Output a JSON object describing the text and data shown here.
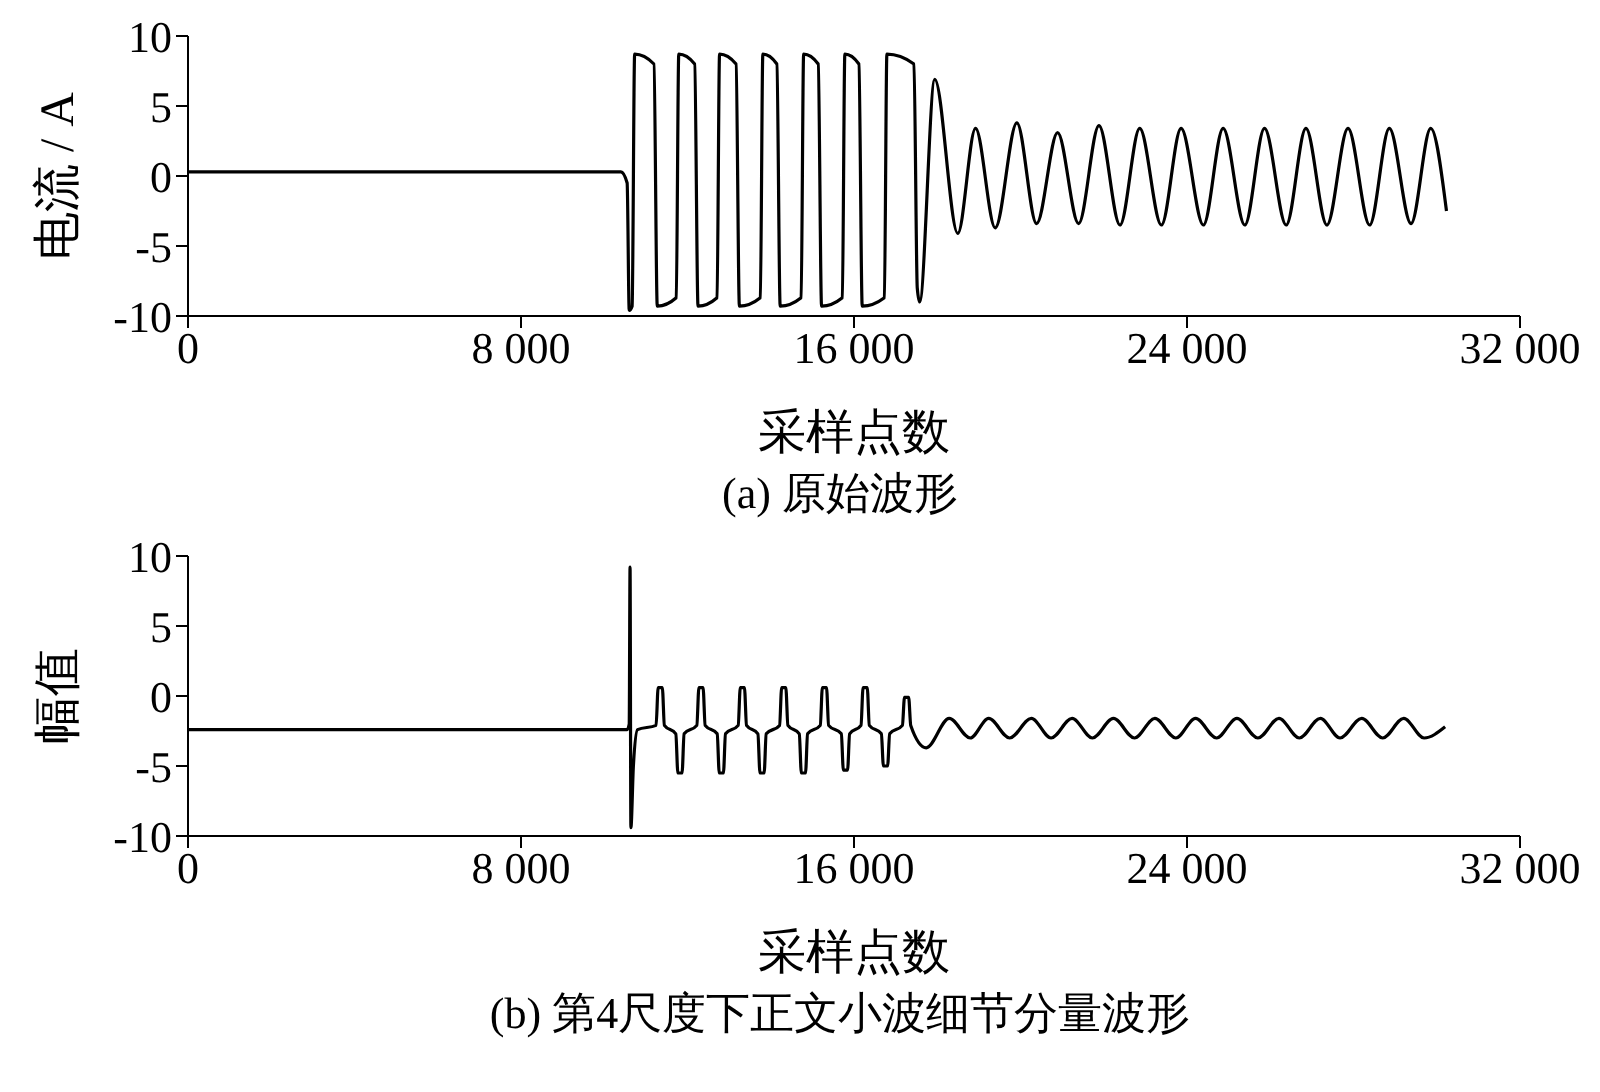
{
  "chart_data": [
    {
      "type": "line",
      "title": "(a)  原始波形",
      "xlabel": "采样点数",
      "ylabel": "电流 / A",
      "xlim": [
        0,
        32000
      ],
      "xticks": [
        0,
        {
          "value": 8000,
          "label": "8 000"
        },
        {
          "value": 16000,
          "label": "16 000"
        },
        {
          "value": 24000,
          "label": "24 000"
        },
        {
          "value": 32000,
          "label": "32 000"
        }
      ],
      "ylim": [
        -10,
        10
      ],
      "yticks": [
        -10,
        -5,
        0,
        5,
        10
      ],
      "grid": false,
      "legend": false,
      "marker": "none",
      "line_style": "solid",
      "series": [
        {
          "color": "#000000",
          "x": [
            0,
            10400,
            10550,
            10600,
            10670,
            10730,
            11194,
            11274,
            11730,
            11790,
            12173,
            12253,
            12710,
            12770,
            13167,
            13247,
            13750,
            13810,
            14147,
            14227,
            14730,
            14790,
            15141,
            15221,
            15720,
            15780,
            16118,
            16198,
            16730,
            16790,
            17440,
            17520,
            17577,
            17940,
            18493,
            18920,
            19393,
            19913,
            20387,
            20891,
            21396,
            21885,
            22390,
            22864,
            23385,
            23858,
            24394,
            24868,
            25389,
            25862,
            26383,
            26857,
            27361,
            27868,
            28388,
            28861,
            29382,
            29855,
            30234
          ],
          "values": [
            0.3,
            0.3,
            -0.5,
            -9.6,
            -9.3,
            8.7,
            8.0,
            -9.3,
            -8.7,
            8.7,
            8.0,
            -9.3,
            -8.7,
            8.7,
            8.0,
            -9.3,
            -8.7,
            8.7,
            8.0,
            -9.3,
            -8.7,
            8.7,
            8.0,
            -9.3,
            -8.7,
            8.7,
            8.0,
            -9.3,
            -8.7,
            8.7,
            8.0,
            -8.0,
            -9.0,
            6.9,
            -4.1,
            3.4,
            -3.7,
            3.8,
            -3.4,
            3.1,
            -3.4,
            3.6,
            -3.5,
            3.4,
            -3.5,
            3.4,
            -3.5,
            3.4,
            -3.5,
            3.4,
            -3.5,
            3.4,
            -3.5,
            3.4,
            -3.5,
            3.4,
            -3.4,
            3.4,
            -2.5
          ]
        }
      ]
    },
    {
      "type": "line",
      "title": "(b)  第4尺度下正文小波细节分量波形",
      "xlabel": "采样点数",
      "ylabel": "幅值",
      "xlim": [
        0,
        32000
      ],
      "xticks": [
        0,
        {
          "value": 8000,
          "label": "8 000"
        },
        {
          "value": 16000,
          "label": "16 000"
        },
        {
          "value": 24000,
          "label": "24 000"
        },
        {
          "value": 32000,
          "label": "32 000"
        }
      ],
      "ylim": [
        -10,
        10
      ],
      "yticks": [
        -10,
        -5,
        0,
        5,
        10
      ],
      "grid": false,
      "legend": false,
      "marker": "none",
      "line_style": "solid",
      "series": [
        {
          "color": "#000000",
          "x": [
            0,
            10550,
            10600,
            10620,
            10640,
            10700,
            10800,
            11245,
            11295,
            11395,
            11445,
            11719,
            11769,
            11869,
            11919,
            12224,
            12274,
            12374,
            12424,
            12713,
            12763,
            12863,
            12913,
            13218,
            13268,
            13368,
            13418,
            13691,
            13741,
            13841,
            13891,
            14212,
            14262,
            14362,
            14412,
            14685,
            14735,
            14835,
            14885,
            15190,
            15240,
            15340,
            15390,
            15695,
            15745,
            15845,
            15895,
            16168,
            16218,
            16318,
            16368,
            16657,
            16707,
            16807,
            16857,
            17163,
            17213,
            17313,
            17363,
            17736,
            18288,
            18793,
            19235,
            19740,
            20260,
            20734,
            21239,
            21727,
            22233,
            22738,
            23227,
            23732,
            24205,
            24710,
            25199,
            25704,
            26209,
            26698,
            27203,
            27676,
            28197,
            28702,
            29207,
            29695,
            30201
          ],
          "values": [
            -2.4,
            -2.4,
            -2.0,
            9.2,
            -9.4,
            -5.0,
            -2.4,
            -2.1,
            0.6,
            0.6,
            -2.1,
            -2.7,
            -5.5,
            -5.5,
            -2.7,
            -2.1,
            0.6,
            0.6,
            -2.1,
            -2.7,
            -5.5,
            -5.5,
            -2.7,
            -2.1,
            0.6,
            0.6,
            -2.1,
            -2.7,
            -5.5,
            -5.5,
            -2.7,
            -2.1,
            0.6,
            0.6,
            -2.1,
            -2.7,
            -5.5,
            -5.5,
            -2.7,
            -2.1,
            0.6,
            0.6,
            -2.1,
            -2.7,
            -5.3,
            -5.3,
            -2.7,
            -2.1,
            0.6,
            0.6,
            -2.1,
            -2.7,
            -5.0,
            -5.0,
            -2.7,
            -2.1,
            -0.1,
            -0.1,
            -2.1,
            -3.7,
            -1.6,
            -3.0,
            -1.6,
            -3.0,
            -1.6,
            -3.0,
            -1.6,
            -3.0,
            -1.6,
            -3.0,
            -1.6,
            -3.0,
            -1.6,
            -3.0,
            -1.6,
            -3.0,
            -1.6,
            -3.0,
            -1.6,
            -3.0,
            -1.6,
            -3.0,
            -1.6,
            -3.0,
            -2.2
          ]
        }
      ]
    }
  ]
}
